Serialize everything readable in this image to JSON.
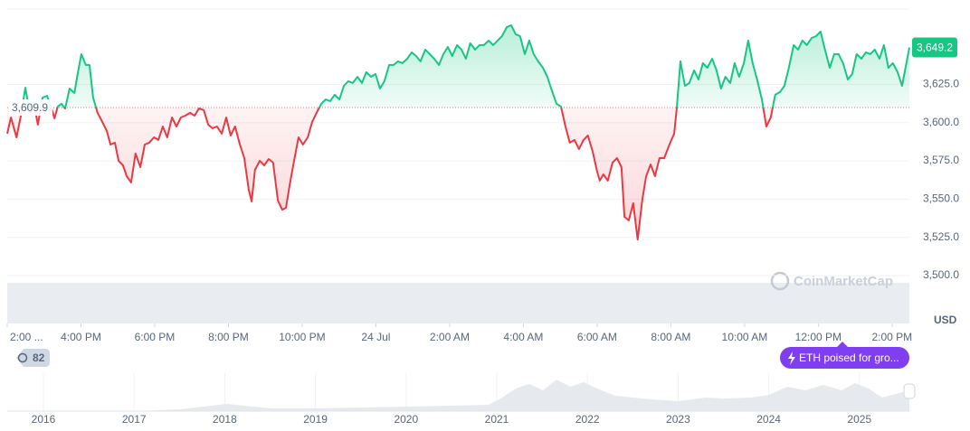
{
  "chart_data": {
    "type": "line",
    "x": [
      0,
      0.1,
      0.25,
      0.37,
      0.49,
      0.61,
      0.74,
      0.83,
      0.96,
      1.08,
      1.2,
      1.28,
      1.37,
      1.47,
      1.57,
      1.69,
      1.82,
      1.91,
      2.01,
      2.13,
      2.23,
      2.33,
      2.45,
      2.58,
      2.7,
      2.8,
      2.92,
      3.02,
      3.14,
      3.24,
      3.36,
      3.48,
      3.61,
      3.73,
      3.85,
      3.98,
      4.1,
      4.22,
      4.34,
      4.47,
      4.59,
      4.71,
      4.83,
      4.96,
      5.08,
      5.2,
      5.33,
      5.45,
      5.57,
      5.69,
      5.82,
      5.94,
      6.06,
      6.18,
      6.31,
      6.43,
      6.55,
      6.63,
      6.72,
      6.85,
      6.97,
      7.09,
      7.21,
      7.34,
      7.46,
      7.56,
      7.66,
      7.78,
      7.9,
      8.02,
      8.15,
      8.27,
      8.39,
      8.52,
      8.64,
      8.76,
      8.88,
      9.01,
      9.13,
      9.25,
      9.37,
      9.5,
      9.62,
      9.74,
      9.87,
      9.99,
      10.11,
      10.23,
      10.36,
      10.48,
      10.6,
      10.72,
      10.85,
      10.97,
      11.09,
      11.21,
      11.34,
      11.46,
      11.58,
      11.71,
      11.83,
      11.95,
      12.07,
      12.2,
      12.32,
      12.44,
      12.56,
      12.69,
      12.81,
      12.93,
      13.06,
      13.18,
      13.3,
      13.42,
      13.55,
      13.67,
      13.79,
      13.91,
      14.04,
      14.16,
      14.28,
      14.4,
      14.53,
      14.65,
      14.77,
      14.9,
      15.02,
      15.14,
      15.26,
      15.39,
      15.51,
      15.63,
      15.75,
      15.88,
      16.0,
      16.07,
      16.17,
      16.29,
      16.42,
      16.54,
      16.66,
      16.74,
      16.86,
      16.98,
      17.1,
      17.23,
      17.33,
      17.45,
      17.57,
      17.69,
      17.82,
      17.96,
      18.09,
      18.16,
      18.26,
      18.38,
      18.5,
      18.63,
      18.75,
      18.87,
      18.99,
      19.12,
      19.24,
      19.36,
      19.48,
      19.61,
      19.73,
      19.85,
      19.98,
      20.1,
      20.22,
      20.34,
      20.47,
      20.59,
      20.71,
      20.83,
      20.96,
      21.08,
      21.2,
      21.33,
      21.45,
      21.57,
      21.69,
      21.82,
      21.94,
      22.06,
      22.18,
      22.31,
      22.43,
      22.55,
      22.67,
      22.8,
      22.92,
      23.04,
      23.17,
      23.29,
      23.41,
      23.53,
      23.66,
      23.78,
      23.9,
      24.02,
      24.15,
      24.27,
      24.39,
      24.47
    ],
    "values": [
      3592.8,
      3603.4,
      3590.4,
      3604.6,
      3622.9,
      3606.4,
      3610.5,
      3598.7,
      3616.4,
      3617.6,
      3609.3,
      3602.8,
      3610.5,
      3612.3,
      3609.3,
      3622.3,
      3619.4,
      3631.8,
      3644.8,
      3637.7,
      3637.7,
      3616.4,
      3606.4,
      3600.5,
      3594.6,
      3585.7,
      3586.9,
      3575.1,
      3572.1,
      3565.0,
      3560.9,
      3579.8,
      3570.9,
      3585.7,
      3586.9,
      3590.4,
      3588.7,
      3597.5,
      3590.4,
      3603.4,
      3597.5,
      3603.4,
      3604.6,
      3606.4,
      3604.6,
      3609.3,
      3608.2,
      3598.7,
      3596.3,
      3597.5,
      3592.8,
      3603.4,
      3591.6,
      3597.5,
      3585.7,
      3576.8,
      3556.1,
      3548.5,
      3569.1,
      3575.1,
      3572.1,
      3576.2,
      3573.9,
      3549.1,
      3543.1,
      3544.3,
      3559.1,
      3575.1,
      3590.4,
      3585.7,
      3590.4,
      3600.5,
      3606.4,
      3612.3,
      3615.2,
      3614.1,
      3618.2,
      3615.2,
      3624.1,
      3627.1,
      3625.9,
      3630.0,
      3625.9,
      3633.0,
      3630.0,
      3631.8,
      3622.3,
      3627.1,
      3637.7,
      3637.7,
      3640.1,
      3638.9,
      3641.8,
      3646.0,
      3643.6,
      3640.1,
      3647.8,
      3644.8,
      3641.8,
      3637.7,
      3644.8,
      3649.5,
      3643.6,
      3650.7,
      3647.8,
      3641.8,
      3651.9,
      3647.8,
      3650.7,
      3650.7,
      3653.7,
      3650.7,
      3653.7,
      3656.6,
      3662.5,
      3663.7,
      3657.8,
      3656.6,
      3644.8,
      3653.7,
      3644.8,
      3640.1,
      3635.9,
      3630.0,
      3621.2,
      3612.3,
      3610.5,
      3597.5,
      3586.9,
      3588.7,
      3582.7,
      3588.7,
      3591.6,
      3581.0,
      3568.0,
      3562.1,
      3566.2,
      3562.1,
      3573.9,
      3576.8,
      3570.9,
      3538.4,
      3536.1,
      3547.3,
      3523.6,
      3550.2,
      3565.0,
      3572.7,
      3565.0,
      3576.8,
      3576.8,
      3585.7,
      3592.8,
      3609.3,
      3640.1,
      3624.1,
      3625.9,
      3634.2,
      3628.2,
      3638.9,
      3635.9,
      3641.8,
      3634.2,
      3622.3,
      3630.0,
      3625.9,
      3638.9,
      3630.0,
      3638.9,
      3653.7,
      3638.9,
      3628.2,
      3615.2,
      3597.5,
      3603.4,
      3618.2,
      3620.0,
      3624.1,
      3635.9,
      3650.7,
      3647.8,
      3653.7,
      3650.7,
      3655.4,
      3656.6,
      3659.6,
      3647.8,
      3635.9,
      3644.8,
      3644.8,
      3638.9,
      3628.2,
      3631.8,
      3644.8,
      3641.8,
      3646.0,
      3644.8,
      3647.8,
      3641.8,
      3650.7,
      3635.9,
      3638.9,
      3633.0,
      3624.1,
      3638.9,
      3649.2
    ],
    "up_color": "#16c784",
    "down_color": "#ea3943",
    "baseline": {
      "value": 3609.9,
      "label": "3,609.9"
    },
    "current_price": {
      "value": 3649.2,
      "label": "3,649.2"
    },
    "xlim": [
      0,
      24.47
    ],
    "xticks": [
      {
        "value": 0,
        "label": "2:00 ..."
      },
      {
        "value": 2,
        "label": "4:00 PM"
      },
      {
        "value": 4,
        "label": "6:00 PM"
      },
      {
        "value": 6,
        "label": "8:00 PM"
      },
      {
        "value": 8,
        "label": "10:00 PM"
      },
      {
        "value": 10,
        "label": "24 Jul"
      },
      {
        "value": 12,
        "label": "2:00 AM"
      },
      {
        "value": 14,
        "label": "4:00 AM"
      },
      {
        "value": 16,
        "label": "6:00 AM"
      },
      {
        "value": 18,
        "label": "8:00 AM"
      },
      {
        "value": 20,
        "label": "10:00 AM"
      },
      {
        "value": 22,
        "label": "12:00 PM"
      },
      {
        "value": 24,
        "label": "2:00 PM"
      }
    ],
    "ylim": [
      3500,
      3674.3
    ],
    "yticks": [
      {
        "value": 3500,
        "label": "3,500.0"
      },
      {
        "value": 3525,
        "label": "3,525.0"
      },
      {
        "value": 3550,
        "label": "3,550.0"
      },
      {
        "value": 3575,
        "label": "3,575.0"
      },
      {
        "value": 3600,
        "label": "3,600.0"
      },
      {
        "value": 3625,
        "label": "3,625.0"
      }
    ],
    "currency": "USD",
    "grid": true
  },
  "watermark": "CoinMarketCap",
  "badge": "82",
  "news_pill": "ETH poised for gro...",
  "navigator": {
    "years": [
      "2016",
      "2017",
      "2018",
      "2019",
      "2020",
      "2021",
      "2022",
      "2023",
      "2024",
      "2025"
    ]
  }
}
